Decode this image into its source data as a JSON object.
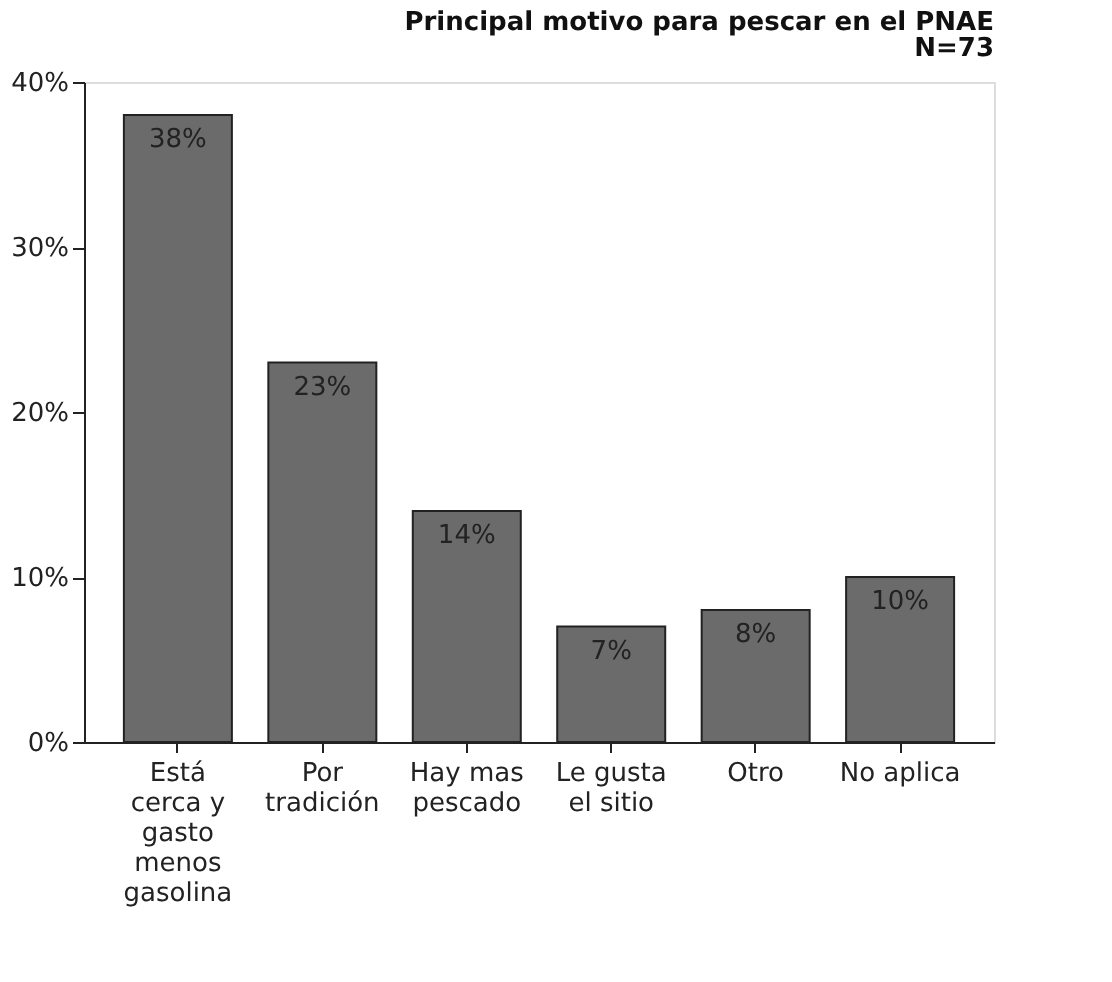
{
  "chart_data": {
    "type": "bar",
    "title": "Principal motivo para pescar en el PNAE",
    "subtitle": "N=73",
    "categories": [
      "Está cerca y gasto menos gasolina",
      "Por tradición",
      "Hay mas pescado",
      "Le gusta el sitio",
      "Otro",
      "No aplica"
    ],
    "values": [
      38,
      23,
      14,
      7,
      8,
      10
    ],
    "color": "#6b6b6b",
    "value_labels": [
      "38%",
      "23%",
      "14%",
      "7%",
      "8%",
      "10%"
    ],
    "ylim": [
      0,
      40
    ],
    "yticks": [
      {
        "value": 0,
        "label": "0%"
      },
      {
        "value": 10,
        "label": "10%"
      },
      {
        "value": 20,
        "label": "20%"
      },
      {
        "value": 30,
        "label": "30%"
      },
      {
        "value": 40,
        "label": "40%"
      }
    ],
    "grid": false
  }
}
